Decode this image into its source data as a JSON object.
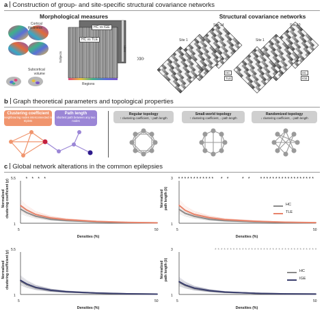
{
  "panel_a": {
    "letter": "a",
    "title": "Construction of group- and site-specific structural covariance networks",
    "morph_title": "Morphological measures",
    "cortical_label": "Cortical\nthickness",
    "subcortical_label": "Subcortical\nvolume",
    "hc_vs_ige": "HC vs IGE",
    "hc_vs_tle": "HC vs TLE",
    "subjects_label": "Subjects",
    "regions_label": "Regions",
    "sites_label": "Sites",
    "scn_title": "Structural covariance networks",
    "site_labels": [
      "Site 14",
      "Site 1",
      "Site 10",
      "Site 1"
    ],
    "group_labels": [
      "HC",
      "TLE",
      "HC",
      "IGE"
    ],
    "arrow_glyph": "»»"
  },
  "panel_b": {
    "letter": "b",
    "title": "Graph theoretical parameters and topological properties",
    "clustering": {
      "title": "Clustering coefficient",
      "desc": "neighbouring nodes interconnected in triplets",
      "color": "#f0956e"
    },
    "path": {
      "title": "Path length",
      "desc": "shortest path between any two nodes",
      "color": "#9b86d6"
    },
    "topologies": [
      {
        "title": "Regular topology",
        "desc": "↑ clustering coefficient, ↑ path length"
      },
      {
        "title": "Small-world topology",
        "desc": "↑ clustering coefficient, ↓ path length"
      },
      {
        "title": "Randomized topology",
        "desc": "↓ clustering coefficient, ↓ path length"
      }
    ]
  },
  "panel_c": {
    "letter": "c",
    "title": "Global network alterations in the common epilepsies",
    "xlabel": "Densities (%)",
    "ylabel_cc": "Normalized\nclustering coefficient (γ)",
    "ylabel_pl": "Normalized\npath length (λ)",
    "x_tick_min": "5",
    "x_tick_max": "50",
    "y_ticks_cc": [
      "5.5",
      "1"
    ],
    "y_ticks_pl": [
      "3",
      "1"
    ],
    "legend_tle": [
      {
        "label": "HC",
        "color": "#8a8a8a"
      },
      {
        "label": "TLE",
        "color": "#e8836a"
      }
    ],
    "legend_ige": [
      {
        "label": "HC",
        "color": "#8a8a8a"
      },
      {
        "label": "IGE",
        "color": "#3b3f6e"
      }
    ],
    "star": "*"
  },
  "colors": {
    "hc": "#8a8a8a",
    "tle": "#e8836a",
    "ige": "#3b3f6e",
    "star_dark": "#111111",
    "star_light": "#9a9a9a"
  },
  "chart_data": [
    {
      "type": "line",
      "panel": "TLE clustering",
      "xlabel": "Densities (%)",
      "ylabel": "Normalized clustering coefficient (γ)",
      "xlim": [
        5,
        50
      ],
      "ylim": [
        1,
        5.5
      ],
      "x": [
        5,
        7,
        10,
        15,
        20,
        30,
        40,
        50
      ],
      "series": [
        {
          "name": "HC",
          "values": [
            2.6,
            2.2,
            1.8,
            1.45,
            1.3,
            1.15,
            1.08,
            1.04
          ]
        },
        {
          "name": "TLE",
          "values": [
            3.0,
            2.5,
            2.0,
            1.6,
            1.4,
            1.2,
            1.1,
            1.05
          ]
        }
      ],
      "significant_densities": [
        7,
        9,
        11,
        13
      ]
    },
    {
      "type": "line",
      "panel": "TLE path length",
      "xlabel": "Densities (%)",
      "ylabel": "Normalized path length (λ)",
      "xlim": [
        5,
        50
      ],
      "ylim": [
        1,
        3
      ],
      "x": [
        5,
        7,
        10,
        15,
        20,
        30,
        40,
        50
      ],
      "series": [
        {
          "name": "HC",
          "values": [
            1.7,
            1.5,
            1.35,
            1.2,
            1.13,
            1.07,
            1.04,
            1.02
          ]
        },
        {
          "name": "TLE",
          "values": [
            1.9,
            1.65,
            1.45,
            1.28,
            1.18,
            1.1,
            1.05,
            1.03
          ]
        }
      ],
      "significant_densities": [
        5,
        6,
        7,
        8,
        9,
        10,
        11,
        12,
        13,
        14,
        15,
        16,
        19,
        21,
        26,
        28,
        32,
        33,
        34,
        35,
        36,
        37,
        38,
        39,
        40,
        41,
        42,
        43,
        44,
        45,
        46,
        47,
        48,
        49
      ]
    },
    {
      "type": "line",
      "panel": "IGE clustering",
      "xlabel": "Densities (%)",
      "ylabel": "Normalized clustering coefficient (γ)",
      "xlim": [
        5,
        50
      ],
      "ylim": [
        1,
        5.5
      ],
      "x": [
        5,
        7,
        10,
        15,
        20,
        30,
        40,
        50
      ],
      "series": [
        {
          "name": "HC",
          "values": [
            2.5,
            2.1,
            1.75,
            1.45,
            1.3,
            1.15,
            1.08,
            1.04
          ]
        },
        {
          "name": "IGE",
          "values": [
            2.6,
            2.2,
            1.8,
            1.47,
            1.31,
            1.16,
            1.08,
            1.04
          ]
        }
      ],
      "significant_densities": []
    },
    {
      "type": "line",
      "panel": "IGE path length",
      "xlabel": "Densities (%)",
      "ylabel": "Normalized path length (λ)",
      "xlim": [
        5,
        50
      ],
      "ylim": [
        1,
        3
      ],
      "x": [
        5,
        7,
        10,
        15,
        20,
        30,
        40,
        50
      ],
      "series": [
        {
          "name": "HC",
          "values": [
            1.6,
            1.45,
            1.3,
            1.18,
            1.11,
            1.06,
            1.03,
            1.02
          ]
        },
        {
          "name": "IGE",
          "values": [
            1.65,
            1.48,
            1.32,
            1.19,
            1.12,
            1.06,
            1.03,
            1.02
          ]
        }
      ],
      "significant_densities": [
        17,
        18,
        19,
        20,
        21,
        22,
        23,
        24,
        25,
        26,
        27,
        28,
        29,
        30,
        31,
        32,
        33,
        34,
        35,
        36,
        37,
        38,
        39,
        40,
        41,
        42,
        43,
        44,
        45,
        46,
        47,
        48,
        49,
        50
      ]
    }
  ]
}
